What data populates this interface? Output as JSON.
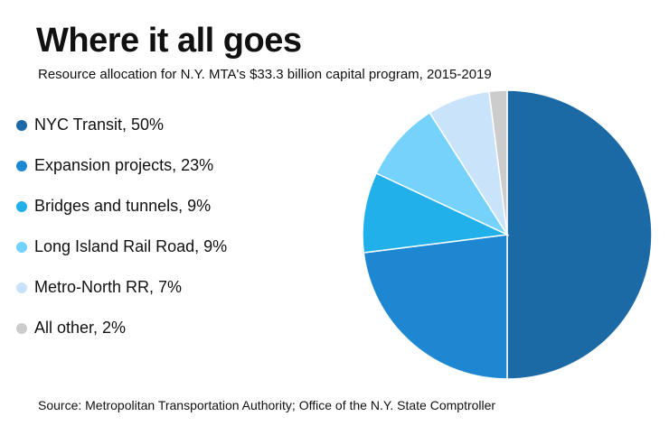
{
  "chart_data": {
    "type": "pie",
    "title": "Where it all goes",
    "subtitle": "Resource allocation for N.Y. MTA's $33.3 billion capital program, 2015-2019",
    "source": "Source: Metropolitan Transportation Authority; Office of the N.Y. State Comptroller",
    "slices": [
      {
        "label": "NYC Transit",
        "value": 50,
        "legend_text": "NYC Transit, 50%",
        "color": "#1b6aa5"
      },
      {
        "label": "Expansion projects",
        "value": 23,
        "legend_text": "Expansion projects, 23%",
        "color": "#1d87d2"
      },
      {
        "label": "Bridges and tunnels",
        "value": 9,
        "legend_text": "Bridges and tunnels, 9%",
        "color": "#22b0ea"
      },
      {
        "label": "Long Island Rail Road",
        "value": 9,
        "legend_text": "Long Island Rail Road, 9%",
        "color": "#74d2fb"
      },
      {
        "label": "Metro-North RR",
        "value": 7,
        "legend_text": "Metro-North RR, 7%",
        "color": "#c9e3fa"
      },
      {
        "label": "All other",
        "value": 2,
        "legend_text": "All other, 2%",
        "color": "#cccccc"
      }
    ],
    "legend_position": "left"
  }
}
